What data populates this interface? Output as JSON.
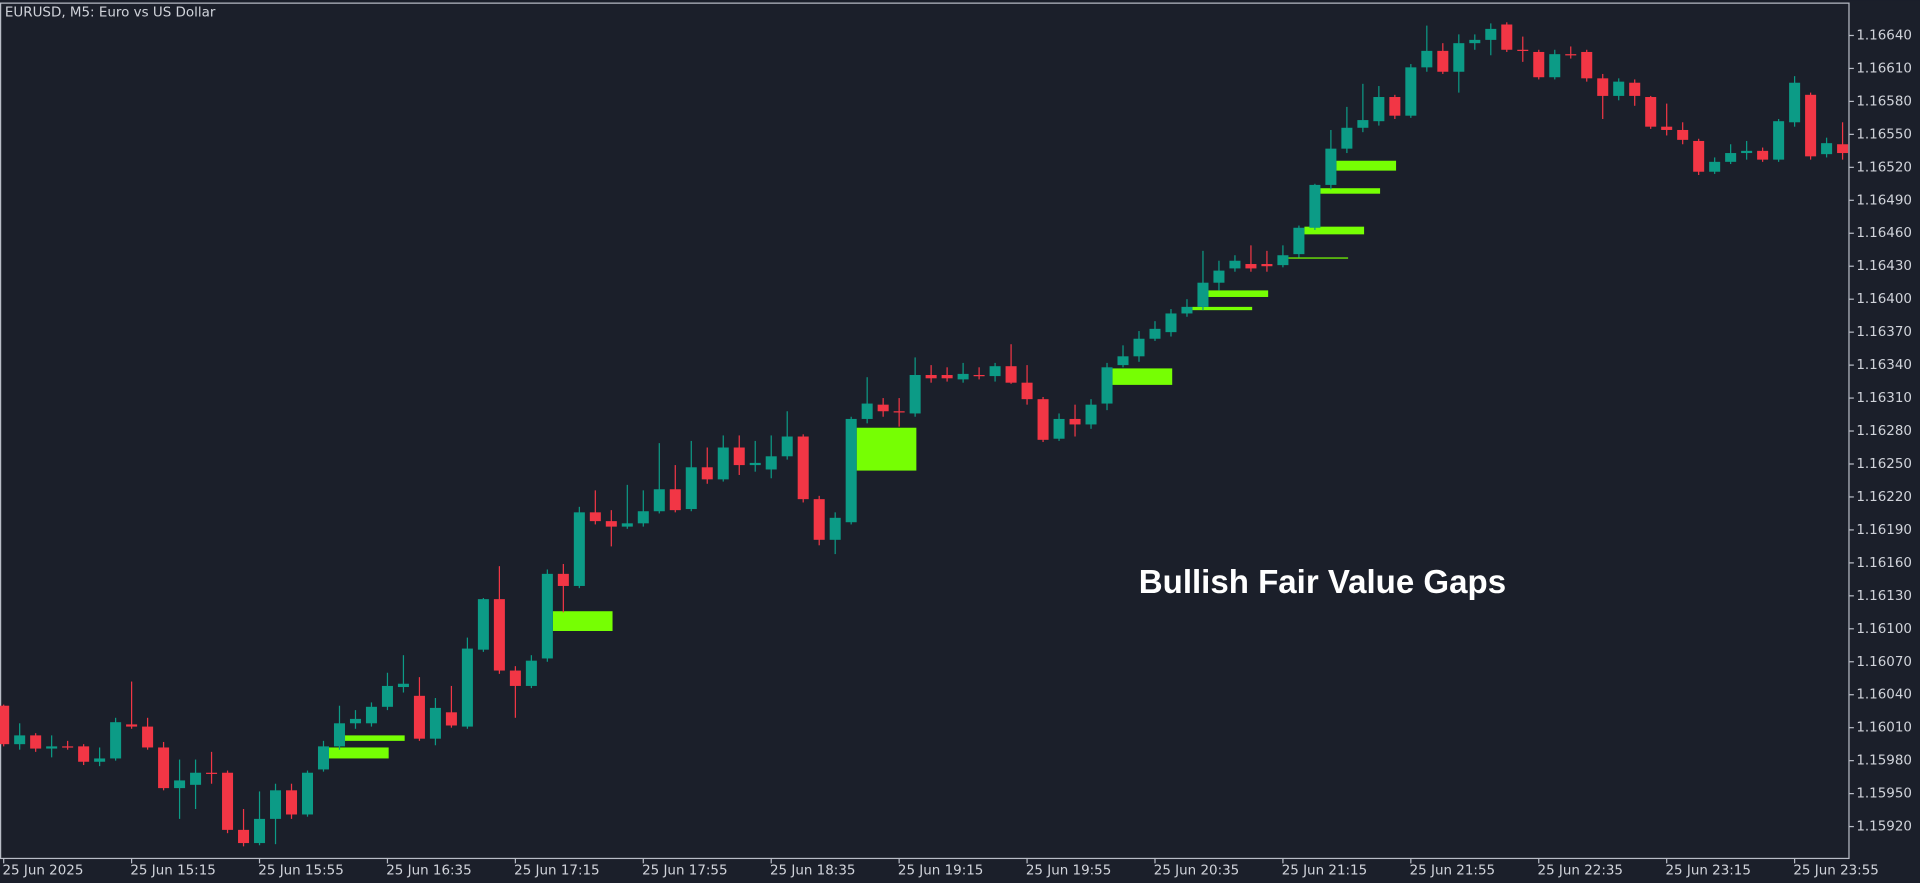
{
  "chart_data": {
    "type": "candlestick",
    "title": "EURUSD, M5:  Euro vs US Dollar",
    "annotation": "Bullish Fair Value Gaps",
    "up_color": "#0c9b86",
    "down_color": "#f23645",
    "open": [
      1.1603,
      1.15995,
      1.16003,
      1.15991,
      1.15993,
      1.15993,
      1.15979,
      1.15982,
      1.16013,
      1.16011,
      1.15992,
      1.15955,
      1.15958,
      1.15969,
      1.15969,
      1.15917,
      1.15905,
      1.15927,
      1.15953,
      1.15931,
      1.15972,
      1.15993,
      1.16014,
      1.16014,
      1.16029,
      1.16047,
      1.16039,
      1.16,
      1.16024,
      1.16011,
      1.16081,
      1.16127,
      1.16062,
      1.16048,
      1.16073,
      1.1615,
      1.16139,
      1.16206,
      1.16198,
      1.16193,
      1.16196,
      1.16207,
      1.16227,
      1.16209,
      1.16247,
      1.16236,
      1.16265,
      1.16249,
      1.16245,
      1.16257,
      1.16275,
      1.16218,
      1.16181,
      1.16197,
      1.16291,
      1.16304,
      1.16298,
      1.16296,
      1.16331,
      1.16331,
      1.16327,
      1.16331,
      1.1633,
      1.16339,
      1.16324,
      1.16309,
      1.16273,
      1.16291,
      1.16286,
      1.16305,
      1.1634,
      1.16348,
      1.16364,
      1.1637,
      1.16387,
      1.16393,
      1.16415,
      1.16428,
      1.16432,
      1.16432,
      1.16431,
      1.16441,
      1.16465,
      1.16504,
      1.16537,
      1.16556,
      1.16562,
      1.16584,
      1.16567,
      1.16611,
      1.16626,
      1.16607,
      1.16633,
      1.16636,
      1.1665,
      1.16627,
      1.16625,
      1.16602,
      1.16623,
      1.16625,
      1.16601,
      1.16585,
      1.16597,
      1.16584,
      1.16557,
      1.16554,
      1.16544,
      1.16516,
      1.16525,
      1.16533,
      1.16535,
      1.16527,
      1.16561,
      1.16586,
      1.16532,
      1.16541
    ],
    "high": [
      1.16031,
      1.16014,
      1.16005,
      1.16003,
      1.15998,
      1.15995,
      1.15992,
      1.16019,
      1.16052,
      1.16019,
      1.15997,
      1.15981,
      1.15981,
      1.15988,
      1.15971,
      1.15936,
      1.15952,
      1.15959,
      1.15959,
      1.15971,
      1.15998,
      1.1603,
      1.16026,
      1.16033,
      1.1606,
      1.16076,
      1.16056,
      1.16037,
      1.16048,
      1.16092,
      1.16128,
      1.16157,
      1.16066,
      1.16076,
      1.16154,
      1.16159,
      1.16211,
      1.16226,
      1.16208,
      1.16231,
      1.16226,
      1.16269,
      1.16249,
      1.16271,
      1.16265,
      1.16276,
      1.16276,
      1.16271,
      1.16276,
      1.16298,
      1.16277,
      1.16221,
      1.16206,
      1.16293,
      1.16329,
      1.1631,
      1.1631,
      1.16347,
      1.1634,
      1.16338,
      1.16342,
      1.16338,
      1.16342,
      1.16359,
      1.1634,
      1.16311,
      1.16296,
      1.16304,
      1.16309,
      1.16342,
      1.16358,
      1.16371,
      1.1638,
      1.16391,
      1.164,
      1.16444,
      1.16435,
      1.1644,
      1.16449,
      1.16444,
      1.16449,
      1.16467,
      1.16505,
      1.16554,
      1.16575,
      1.16596,
      1.16594,
      1.16586,
      1.16614,
      1.16649,
      1.16633,
      1.16641,
      1.16641,
      1.16651,
      1.16652,
      1.16639,
      1.16627,
      1.16627,
      1.1663,
      1.16627,
      1.16605,
      1.16601,
      1.166,
      1.16585,
      1.16578,
      1.16561,
      1.16546,
      1.16529,
      1.16541,
      1.16544,
      1.16538,
      1.16564,
      1.16603,
      1.16588,
      1.16547,
      1.16561
    ],
    "low": [
      1.15993,
      1.1599,
      1.15988,
      1.15983,
      1.1599,
      1.15976,
      1.15975,
      1.1598,
      1.16009,
      1.1599,
      1.15953,
      1.15927,
      1.15936,
      1.15959,
      1.15914,
      1.15902,
      1.15903,
      1.15904,
      1.15927,
      1.15929,
      1.1597,
      1.1599,
      1.16009,
      1.16011,
      1.16026,
      1.16042,
      1.15998,
      1.15994,
      1.1601,
      1.16009,
      1.16079,
      1.16059,
      1.16019,
      1.16046,
      1.1607,
      1.16115,
      1.16137,
      1.16195,
      1.16175,
      1.16191,
      1.16193,
      1.16205,
      1.16206,
      1.16207,
      1.16232,
      1.16234,
      1.1624,
      1.16243,
      1.16237,
      1.16254,
      1.16215,
      1.16176,
      1.16168,
      1.16195,
      1.16287,
      1.16293,
      1.16284,
      1.16293,
      1.16324,
      1.16325,
      1.16324,
      1.16327,
      1.16325,
      1.16323,
      1.16304,
      1.1627,
      1.16271,
      1.16275,
      1.16282,
      1.16299,
      1.16338,
      1.16343,
      1.16362,
      1.16366,
      1.16384,
      1.1639,
      1.16408,
      1.16425,
      1.16425,
      1.16425,
      1.16429,
      1.16438,
      1.16463,
      1.165,
      1.16533,
      1.16552,
      1.16558,
      1.16564,
      1.16565,
      1.16607,
      1.16605,
      1.16588,
      1.16627,
      1.16622,
      1.16625,
      1.16616,
      1.166,
      1.166,
      1.16619,
      1.16598,
      1.16564,
      1.16581,
      1.16576,
      1.16555,
      1.16549,
      1.16541,
      1.16513,
      1.16514,
      1.16523,
      1.16527,
      1.16525,
      1.16525,
      1.16557,
      1.16527,
      1.16529,
      1.16527
    ],
    "close": [
      1.15995,
      1.16003,
      1.15991,
      1.15993,
      1.15992,
      1.15979,
      1.15982,
      1.16015,
      1.16011,
      1.15992,
      1.15955,
      1.15962,
      1.15969,
      1.15968,
      1.15917,
      1.15905,
      1.15927,
      1.15953,
      1.15931,
      1.15969,
      1.15993,
      1.16014,
      1.16018,
      1.16029,
      1.16048,
      1.1605,
      1.16,
      1.16028,
      1.16012,
      1.16082,
      1.16127,
      1.16062,
      1.16048,
      1.16071,
      1.1615,
      1.16139,
      1.16206,
      1.16198,
      1.16193,
      1.16196,
      1.16207,
      1.16227,
      1.16208,
      1.16247,
      1.16236,
      1.16265,
      1.16249,
      1.16251,
      1.16257,
      1.16275,
      1.16218,
      1.16181,
      1.16201,
      1.16291,
      1.16305,
      1.16298,
      1.16297,
      1.16331,
      1.16328,
      1.16328,
      1.16332,
      1.1633,
      1.16339,
      1.16324,
      1.16309,
      1.16272,
      1.16291,
      1.16286,
      1.16304,
      1.16338,
      1.16348,
      1.16364,
      1.16373,
      1.16387,
      1.16393,
      1.16415,
      1.16426,
      1.16435,
      1.16428,
      1.1643,
      1.1644,
      1.16465,
      1.16504,
      1.16537,
      1.16556,
      1.16563,
      1.16584,
      1.16567,
      1.16611,
      1.16626,
      1.16607,
      1.16633,
      1.16636,
      1.16646,
      1.16627,
      1.16626,
      1.16602,
      1.16623,
      1.16622,
      1.16601,
      1.16585,
      1.16598,
      1.16585,
      1.16557,
      1.16554,
      1.16545,
      1.16516,
      1.16525,
      1.16533,
      1.16535,
      1.16527,
      1.16562,
      1.16597,
      1.1653,
      1.16542,
      1.16533
    ],
    "gaps": {
      "color": "#76ff03",
      "start": [
        20,
        21,
        34,
        53,
        69,
        74,
        75,
        80,
        81,
        82,
        83
      ],
      "end": [
        24,
        25,
        38,
        57,
        73,
        78,
        79,
        84,
        85,
        86,
        87
      ],
      "top": [
        1.15992,
        1.16003,
        1.16116,
        1.16283,
        1.16337,
        1.16393,
        1.16408,
        1.16438,
        1.16466,
        1.16501,
        1.16526
      ],
      "bottom": [
        1.15982,
        1.15998,
        1.16098,
        1.16244,
        1.16322,
        1.1639,
        1.16402,
        1.16437,
        1.16459,
        1.16496,
        1.16517
      ]
    },
    "xlim": [
      -0.23,
      115.4
    ],
    "ylim": [
      1.15891,
      1.1667
    ],
    "yticks": [
      {
        "value": 1.1592,
        "label": "1.15920"
      },
      {
        "value": 1.1595,
        "label": "1.15950"
      },
      {
        "value": 1.1598,
        "label": "1.15980"
      },
      {
        "value": 1.1601,
        "label": "1.16010"
      },
      {
        "value": 1.1604,
        "label": "1.16040"
      },
      {
        "value": 1.1607,
        "label": "1.16070"
      },
      {
        "value": 1.161,
        "label": "1.16100"
      },
      {
        "value": 1.1613,
        "label": "1.16130"
      },
      {
        "value": 1.1616,
        "label": "1.16160"
      },
      {
        "value": 1.1619,
        "label": "1.16190"
      },
      {
        "value": 1.1622,
        "label": "1.16220"
      },
      {
        "value": 1.1625,
        "label": "1.16250"
      },
      {
        "value": 1.1628,
        "label": "1.16280"
      },
      {
        "value": 1.1631,
        "label": "1.16310"
      },
      {
        "value": 1.1634,
        "label": "1.16340"
      },
      {
        "value": 1.1637,
        "label": "1.16370"
      },
      {
        "value": 1.164,
        "label": "1.16400"
      },
      {
        "value": 1.1643,
        "label": "1.16430"
      },
      {
        "value": 1.1646,
        "label": "1.16460"
      },
      {
        "value": 1.1649,
        "label": "1.16490"
      },
      {
        "value": 1.1652,
        "label": "1.16520"
      },
      {
        "value": 1.1655,
        "label": "1.16550"
      },
      {
        "value": 1.1658,
        "label": "1.16580"
      },
      {
        "value": 1.1661,
        "label": "1.16610"
      },
      {
        "value": 1.1664,
        "label": "1.16640"
      }
    ],
    "xticks": [
      {
        "value": 0,
        "label": "25 Jun 2025"
      },
      {
        "value": 8,
        "label": "25 Jun 15:15"
      },
      {
        "value": 16,
        "label": "25 Jun 15:55"
      },
      {
        "value": 24,
        "label": "25 Jun 16:35"
      },
      {
        "value": 32,
        "label": "25 Jun 17:15"
      },
      {
        "value": 40,
        "label": "25 Jun 17:55"
      },
      {
        "value": 48,
        "label": "25 Jun 18:35"
      },
      {
        "value": 56,
        "label": "25 Jun 19:15"
      },
      {
        "value": 64,
        "label": "25 Jun 19:55"
      },
      {
        "value": 72,
        "label": "25 Jun 20:35"
      },
      {
        "value": 80,
        "label": "25 Jun 21:15"
      },
      {
        "value": 88,
        "label": "25 Jun 21:55"
      },
      {
        "value": 96,
        "label": "25 Jun 22:35"
      },
      {
        "value": 104,
        "label": "25 Jun 23:15"
      },
      {
        "value": 112,
        "label": "25 Jun 23:55"
      }
    ]
  }
}
